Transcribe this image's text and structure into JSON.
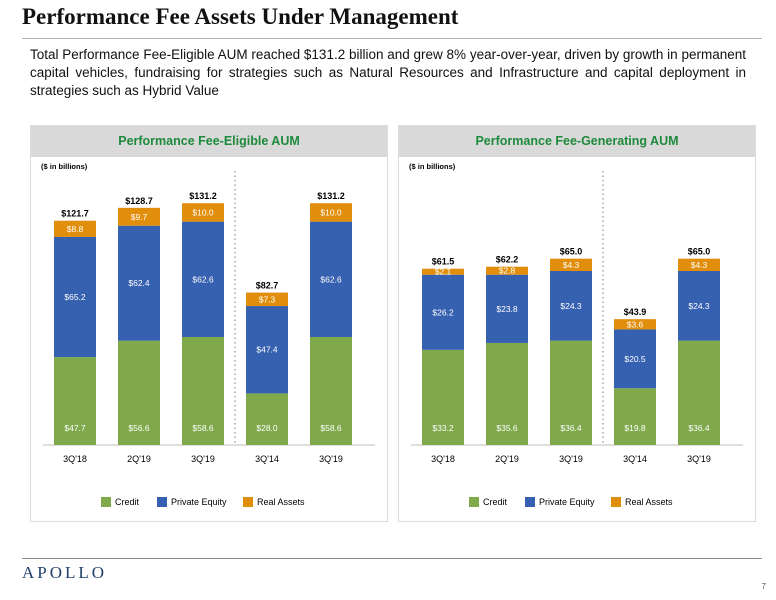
{
  "page": {
    "title": "Performance Fee Assets Under Management",
    "summary": "Total Performance Fee-Eligible AUM reached $131.2 billion and grew 8% year-over-year, driven by growth in permanent capital vehicles, fundraising for strategies such as Natural Resources and Infrastructure and capital deployment in strategies such as Hybrid Value",
    "logo": "APOLLO",
    "page_number": "7"
  },
  "colors": {
    "credit": "#7fa94b",
    "private_equity": "#3660b0",
    "real_assets": "#e08e0b"
  },
  "chart_data": [
    {
      "type": "bar",
      "stacked": true,
      "title": "Performance Fee-Eligible AUM",
      "unit_note": "($ in billions)",
      "categories": [
        "3Q'18",
        "2Q'19",
        "3Q'19",
        "3Q'14",
        "3Q'19"
      ],
      "series": [
        {
          "name": "Credit",
          "values": [
            47.7,
            56.6,
            58.6,
            28.0,
            58.6
          ]
        },
        {
          "name": "Private Equity",
          "values": [
            65.2,
            62.4,
            62.6,
            47.4,
            62.6
          ]
        },
        {
          "name": "Real Assets",
          "values": [
            8.8,
            9.7,
            10.0,
            7.3,
            10.0
          ]
        }
      ],
      "value_labels": [
        [
          "$47.7",
          "$56.6",
          "$58.6",
          "$28.0",
          "$58.6"
        ],
        [
          "$65.2",
          "$62.4",
          "$62.6",
          "$47.4",
          "$62.6"
        ],
        [
          "$8.8",
          "$9.7",
          "$10.0",
          "$7.3",
          "$10.0"
        ]
      ],
      "totals": [
        121.7,
        128.7,
        131.2,
        82.7,
        131.2
      ],
      "total_labels": [
        "$121.7",
        "$128.7",
        "$131.2",
        "$82.7",
        "$131.2"
      ],
      "ylim": [
        0,
        140
      ],
      "divider_after_index": 2,
      "legend_position": "bottom",
      "grid": false
    },
    {
      "type": "bar",
      "stacked": true,
      "title": "Performance Fee-Generating AUM",
      "unit_note": "($ in billions)",
      "categories": [
        "3Q'18",
        "2Q'19",
        "3Q'19",
        "3Q'14",
        "3Q'19"
      ],
      "series": [
        {
          "name": "Credit",
          "values": [
            33.2,
            35.6,
            36.4,
            19.8,
            36.4
          ]
        },
        {
          "name": "Private Equity",
          "values": [
            26.2,
            23.8,
            24.3,
            20.5,
            24.3
          ]
        },
        {
          "name": "Real Assets",
          "values": [
            2.1,
            2.8,
            4.3,
            3.6,
            4.3
          ]
        }
      ],
      "value_labels": [
        [
          "$33.2",
          "$35.6",
          "$36.4",
          "$19.8",
          "$36.4"
        ],
        [
          "$26.2",
          "$23.8",
          "$24.3",
          "$20.5",
          "$24.3"
        ],
        [
          "$2.1",
          "$2.8",
          "$4.3",
          "$3.6",
          "$4.3"
        ]
      ],
      "totals": [
        61.5,
        62.2,
        65.0,
        43.9,
        65.0
      ],
      "total_labels": [
        "$61.5",
        "$62.2",
        "$65.0",
        "$43.9",
        "$65.0"
      ],
      "ylim": [
        0,
        90
      ],
      "divider_after_index": 2,
      "legend_position": "bottom",
      "grid": false
    }
  ]
}
